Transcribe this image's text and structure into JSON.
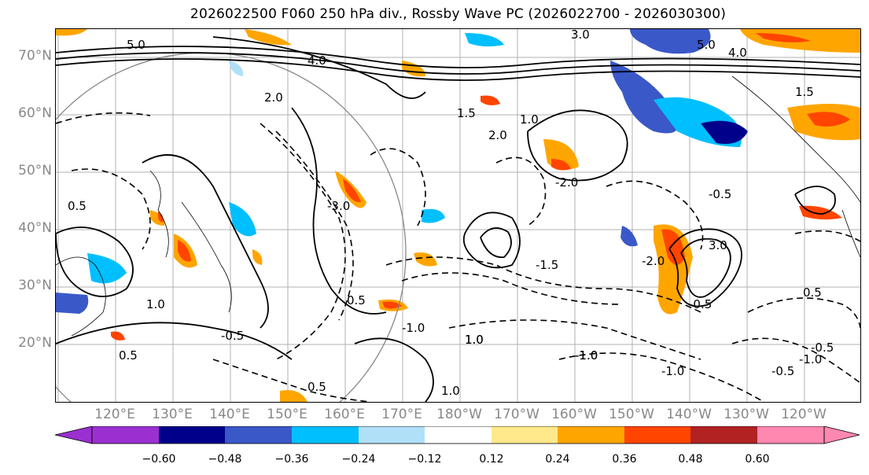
{
  "title": "2026022500 F060 250 hPa div., Rossby Wave PC (2026022700 - 2026030300)",
  "lat_labels": [
    "70°N",
    "60°N",
    "50°N",
    "40°N",
    "30°N",
    "20°N"
  ],
  "lon_labels": [
    "120°E",
    "130°E",
    "140°E",
    "150°E",
    "160°E",
    "170°E",
    "180°W",
    "170°W",
    "160°W",
    "150°W",
    "140°W",
    "130°W",
    "120°W"
  ],
  "colorbar": {
    "ticks": [
      "−0.60",
      "−0.48",
      "−0.36",
      "−0.24",
      "−0.12",
      "0.12",
      "0.24",
      "0.36",
      "0.48",
      "0.60"
    ],
    "colors": [
      "#9b30d0",
      "#00008b",
      "#3a58c8",
      "#00bfff",
      "#b0e0f8",
      "#ffffff",
      "#ffe98a",
      "#ffa500",
      "#ff4500",
      "#b22222",
      "#ff88b0",
      "#ff88b0"
    ]
  },
  "contour_labels": [
    "5.0",
    "3.0",
    "4.0",
    "2.0",
    "1.5",
    "1.0",
    "0.5",
    "-0.5",
    "-1.0",
    "-1.5",
    "-2.0",
    "-3.0",
    "3.0",
    "5.0",
    "4.0",
    "2.0",
    "1.5",
    "1.0",
    "0.5",
    "-0.5",
    "-1.0",
    "-2.0",
    "1.0",
    "0.5",
    "-0.5",
    "-1.0",
    "1.0",
    "0.5",
    "-0.5",
    "-1.0",
    "1.0",
    "-1.0",
    "0.5",
    "-0.5"
  ]
}
